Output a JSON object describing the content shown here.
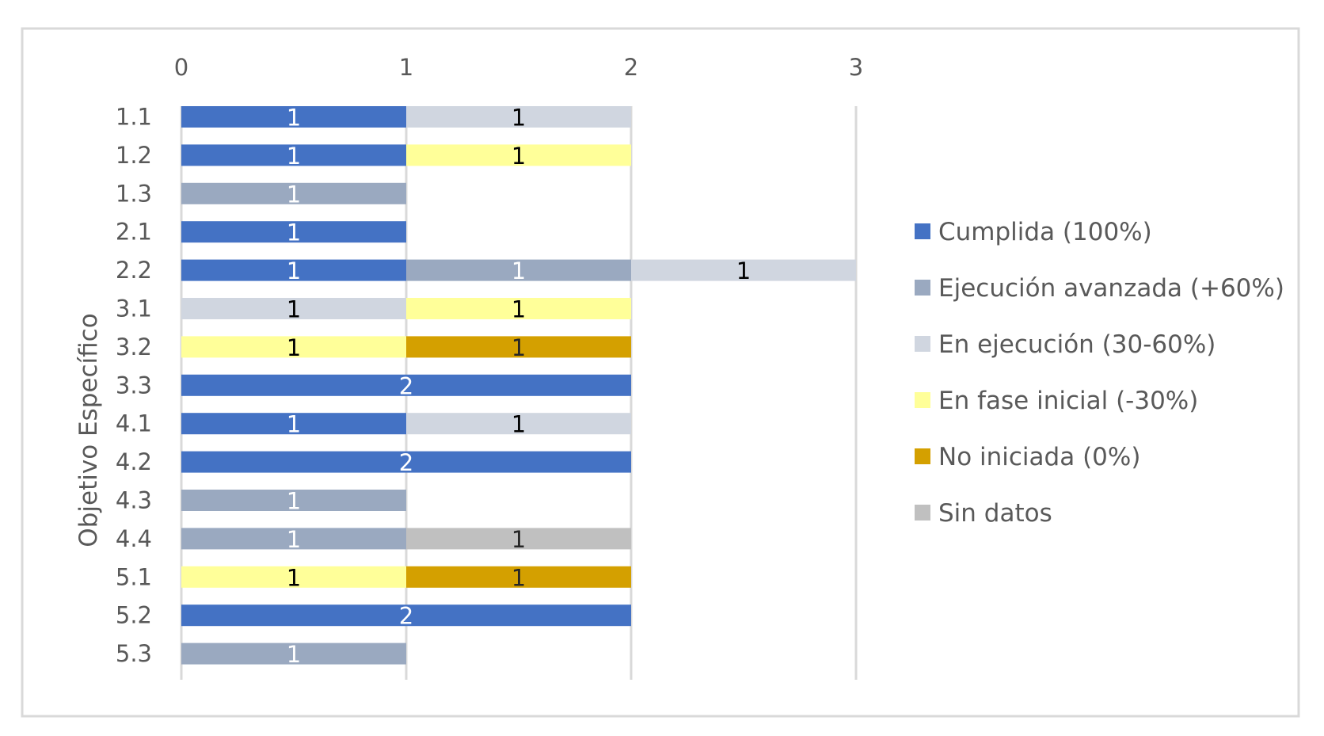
{
  "chart_data": {
    "type": "bar",
    "orientation": "horizontal",
    "stacked": true,
    "title": "",
    "ylabel": "Objetivo Específico",
    "xlabel": "",
    "x_ticks": [
      "0",
      "1",
      "2",
      "3"
    ],
    "xlim": [
      0,
      3
    ],
    "grid": true,
    "legend_position": "right",
    "categories": [
      "1.1",
      "1.2",
      "1.3",
      "2.1",
      "2.2",
      "3.1",
      "3.2",
      "3.3",
      "4.1",
      "4.2",
      "4.3",
      "4.4",
      "5.1",
      "5.2",
      "5.3"
    ],
    "series": [
      {
        "name": "Cumplida (100%)",
        "color": "#4472c4",
        "label_color": "#ffffff",
        "values": [
          1,
          1,
          0,
          1,
          1,
          0,
          0,
          2,
          1,
          2,
          0,
          0,
          0,
          2,
          0
        ]
      },
      {
        "name": "Ejecución avanzada (+60%)",
        "color": "#9aa9c0",
        "label_color": "#ffffff",
        "values": [
          0,
          0,
          1,
          0,
          1,
          0,
          0,
          0,
          0,
          0,
          1,
          1,
          0,
          0,
          1
        ]
      },
      {
        "name": "En ejecución (30-60%)",
        "color": "#d0d6e0",
        "label_color": "#000000",
        "values": [
          1,
          0,
          0,
          0,
          1,
          1,
          0,
          0,
          1,
          0,
          0,
          0,
          0,
          0,
          0
        ]
      },
      {
        "name": "En fase inicial (-30%)",
        "color": "#ffff99",
        "label_color": "#000000",
        "values": [
          0,
          1,
          0,
          0,
          0,
          1,
          1,
          0,
          0,
          0,
          0,
          0,
          1,
          0,
          0
        ]
      },
      {
        "name": "No iniciada (0%)",
        "color": "#d4a000",
        "label_color": "#262626",
        "values": [
          0,
          0,
          0,
          0,
          0,
          0,
          1,
          0,
          0,
          0,
          0,
          0,
          1,
          0,
          0
        ]
      },
      {
        "name": "Sin datos",
        "color": "#c0c0c0",
        "label_color": "#262626",
        "values": [
          0,
          0,
          0,
          0,
          0,
          0,
          0,
          0,
          0,
          0,
          0,
          1,
          0,
          0,
          0
        ]
      }
    ]
  }
}
